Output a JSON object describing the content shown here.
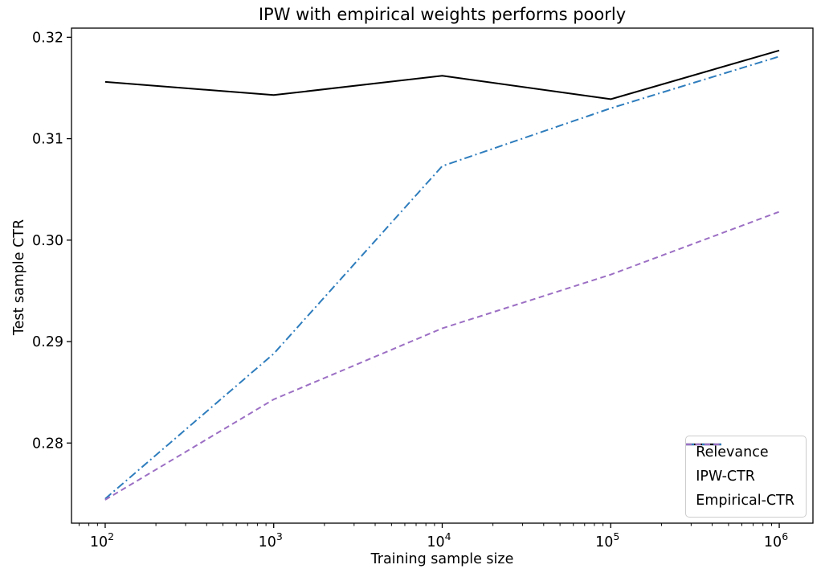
{
  "figure": {
    "background": "#ffffff",
    "title": "IPW with empirical weights performs poorly",
    "xlabel": "Training sample size",
    "ylabel": "Test sample CTR"
  },
  "chart_data": {
    "type": "line",
    "title": "IPW with empirical weights performs poorly",
    "xlabel": "Training sample size",
    "ylabel": "Test sample CTR",
    "x_scale": "log",
    "grid": false,
    "x": [
      100,
      1000,
      10000,
      100000,
      1000000
    ],
    "x_tick_base": "10",
    "x_tick_exponents": [
      "2",
      "3",
      "4",
      "5",
      "6"
    ],
    "x_tick_labels": [
      "10^2",
      "10^3",
      "10^4",
      "10^5",
      "10^6"
    ],
    "y_ticks": [
      0.28,
      0.29,
      0.3,
      0.31,
      0.32
    ],
    "xlim": [
      63.1,
      1584893
    ],
    "ylim": [
      0.2721,
      0.3209
    ],
    "series": [
      {
        "name": "Relevance",
        "color": "#000000",
        "style": "solid",
        "values": [
          0.3156,
          0.3143,
          0.3162,
          0.3139,
          0.3187
        ]
      },
      {
        "name": "IPW-CTR",
        "color": "#2e7dbd",
        "style": "dashdot",
        "values": [
          0.2745,
          0.2888,
          0.3073,
          0.313,
          0.3181
        ]
      },
      {
        "name": "Empirical-CTR",
        "color": "#9c6fc4",
        "style": "dashed",
        "values": [
          0.2744,
          0.2843,
          0.2913,
          0.2966,
          0.3028
        ]
      }
    ],
    "legend": {
      "position": "lower right",
      "labels": [
        "Relevance",
        "IPW-CTR",
        "Empirical-CTR"
      ]
    }
  }
}
